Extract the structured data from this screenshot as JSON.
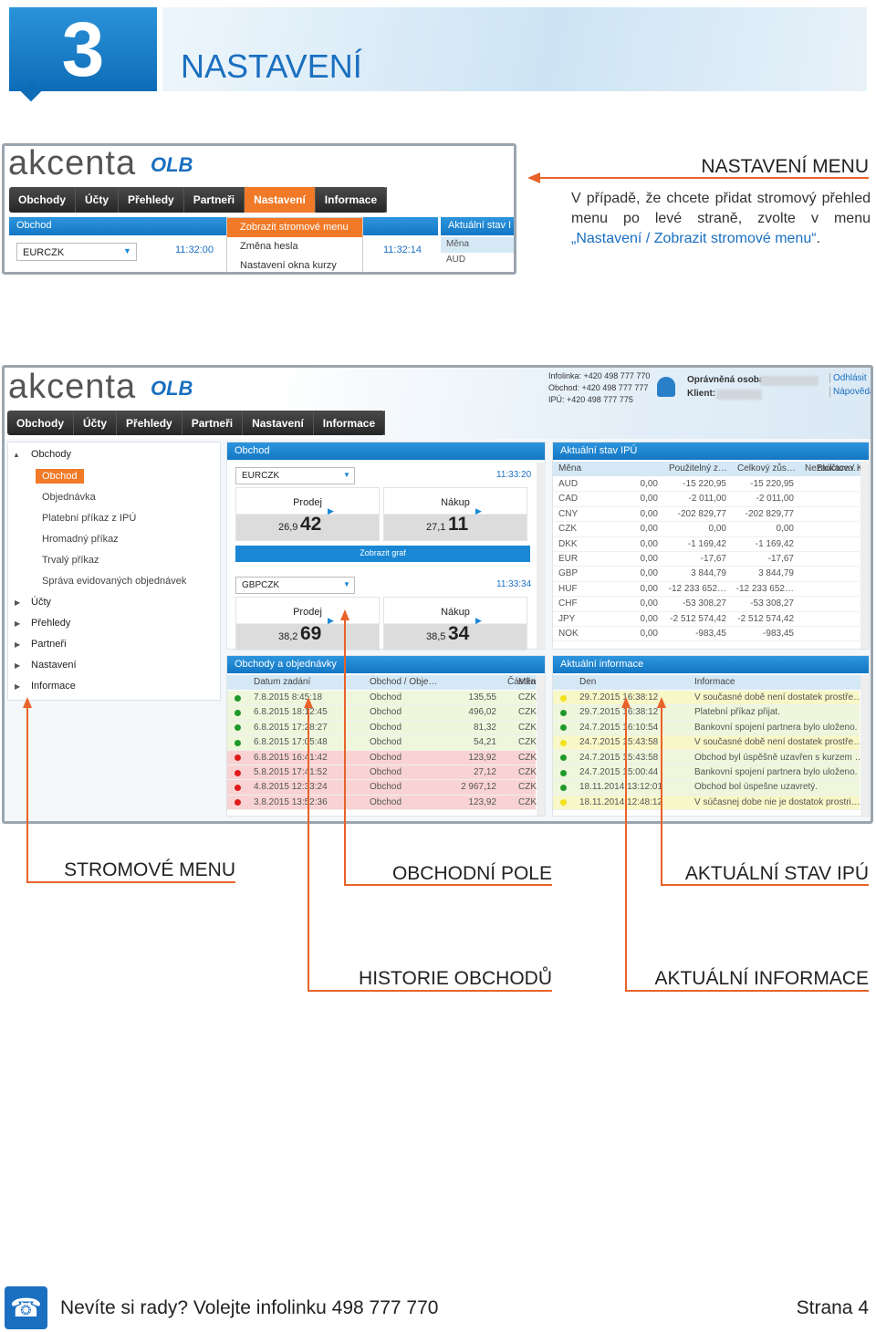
{
  "header": {
    "number": "3",
    "title": "NASTAVENÍ"
  },
  "screenshot_menu": {
    "logo": "akcenta",
    "logo_badge": "OLB",
    "menu": [
      "Obchody",
      "Účty",
      "Přehledy",
      "Partneři",
      "Nastavení",
      "Informace"
    ],
    "panel_title": "Obchod",
    "pair": "EURCZK",
    "time": "11:32:00",
    "dropdown": [
      "Zobrazit stromové menu",
      "Změna hesla",
      "Nastavení okna kurzy"
    ],
    "time_2": "11:32:14",
    "side_panel_title": "Aktuální stav I",
    "side_rows": [
      "Měna",
      "AUD"
    ]
  },
  "callout": {
    "title": "NASTAVENÍ MENU",
    "text": "V případě, že chcete přidat stromový přehled menu po levé straně, zvolte v menu",
    "link": "„Nastavení / Zobrazit stromové menu“",
    "end": "."
  },
  "screenshot_app": {
    "logo": "akcenta",
    "logo_badge": "OLB",
    "contacts": [
      "Infolinka: +420 498 777 770",
      "Obchod: +420 498 777 777",
      "IPÚ: +420 498 777 775"
    ],
    "user_labels": [
      "Oprávněná osoba:",
      "Klient:"
    ],
    "links": [
      "Odhlásit",
      "Nápověda"
    ],
    "menu": [
      "Obchody",
      "Účty",
      "Přehledy",
      "Partneři",
      "Nastavení",
      "Informace"
    ],
    "tree": {
      "root": "Obchody",
      "children": [
        "Obchod",
        "Objednávka",
        "Platební příkaz z IPÚ",
        "Hromadný příkaz",
        "Trvalý příkaz",
        "Správa evidovaných objednávek"
      ],
      "items": [
        "Účty",
        "Přehledy",
        "Partneři",
        "Nastavení",
        "Informace"
      ]
    },
    "trade": {
      "title": "Obchod",
      "pairs": [
        {
          "pair": "EURCZK",
          "time": "11:33:20",
          "sell_label": "Prodej",
          "sell_small": "26,9",
          "sell_big": "42",
          "buy_label": "Nákup",
          "buy_small": "27,1",
          "buy_big": "11"
        },
        {
          "pair": "GBPCZK",
          "time": "11:33:34",
          "sell_label": "Prodej",
          "sell_small": "38,2",
          "sell_big": "69",
          "buy_label": "Nákup",
          "buy_small": "38,5",
          "buy_big": "34"
        }
      ],
      "chart_button": "Zobrazit graf"
    },
    "balance": {
      "title": "Aktuální stav IPÚ",
      "columns": [
        "Měna",
        "Použitelný z…",
        "Celkový zůs…",
        "Nezaúčtova…",
        "Blokace / K"
      ],
      "rows": [
        [
          "AUD",
          "0,00",
          "-15 220,95",
          "-15 220,95"
        ],
        [
          "CAD",
          "0,00",
          "-2 011,00",
          "-2 011,00"
        ],
        [
          "CNY",
          "0,00",
          "-202 829,77",
          "-202 829,77"
        ],
        [
          "CZK",
          "0,00",
          "0,00",
          "0,00"
        ],
        [
          "DKK",
          "0,00",
          "-1 169,42",
          "-1 169,42"
        ],
        [
          "EUR",
          "0,00",
          "-17,67",
          "-17,67"
        ],
        [
          "GBP",
          "0,00",
          "3 844,79",
          "3 844,79"
        ],
        [
          "HUF",
          "0,00",
          "-12 233 652…",
          "-12 233 652…"
        ],
        [
          "CHF",
          "0,00",
          "-53 308,27",
          "-53 308,27"
        ],
        [
          "JPY",
          "0,00",
          "-2 512 574,42",
          "-2 512 574,42"
        ],
        [
          "NOK",
          "0,00",
          "-983,45",
          "-983,45"
        ]
      ]
    },
    "orders": {
      "title": "Obchody a objednávky",
      "columns": [
        "Datum zadání",
        "Obchod / Obje…",
        "Částka prodej",
        "Měn"
      ],
      "rows": [
        {
          "dot": "#1f9a2a",
          "background": "#eef6dc",
          "cells": [
            "7.8.2015 8:45:18",
            "Obchod",
            "135,55",
            "CZK"
          ]
        },
        {
          "dot": "#1f9a2a",
          "background": "#eef6dc",
          "cells": [
            "6.8.2015 18:12:45",
            "Obchod",
            "496,02",
            "CZK"
          ]
        },
        {
          "dot": "#1f9a2a",
          "background": "#eef6dc",
          "cells": [
            "6.8.2015 17:28:27",
            "Obchod",
            "81,32",
            "CZK"
          ]
        },
        {
          "dot": "#1f9a2a",
          "background": "#eef6dc",
          "cells": [
            "6.8.2015 17:05:48",
            "Obchod",
            "54,21",
            "CZK"
          ]
        },
        {
          "dot": "#e01b1b",
          "background": "#f9d3d3",
          "cells": [
            "6.8.2015 16:41:42",
            "Obchod",
            "123,92",
            "CZK"
          ]
        },
        {
          "dot": "#e01b1b",
          "background": "#f9d3d3",
          "cells": [
            "5.8.2015 17:41:52",
            "Obchod",
            "27,12",
            "CZK"
          ]
        },
        {
          "dot": "#e01b1b",
          "background": "#f9d3d3",
          "cells": [
            "4.8.2015 12:33:24",
            "Obchod",
            "2 967,12",
            "CZK"
          ]
        },
        {
          "dot": "#e01b1b",
          "background": "#f9d3d3",
          "cells": [
            "3.8.2015 13:52:36",
            "Obchod",
            "123,92",
            "CZK"
          ]
        }
      ]
    },
    "info": {
      "title": "Aktuální informace",
      "columns": [
        "Den",
        "Informace"
      ],
      "rows": [
        {
          "dot": "#f2e21a",
          "background": "#f7f7c8",
          "cells": [
            "29.7.2015 16:38:12",
            "V současné době není dostatek prostře…"
          ]
        },
        {
          "dot": "#1f9a2a",
          "background": "#eef6dc",
          "cells": [
            "29.7.2015 16:38:12",
            "Platební příkaz přijat."
          ]
        },
        {
          "dot": "#1f9a2a",
          "background": "#eef6dc",
          "cells": [
            "24.7.2015 16:10:54",
            "Bankovní spojení partnera bylo uloženo."
          ]
        },
        {
          "dot": "#f2e21a",
          "background": "#f7f7c8",
          "cells": [
            "24.7.2015 15:43:58",
            "V současné době není dostatek prostře…"
          ]
        },
        {
          "dot": "#1f9a2a",
          "background": "#eef6dc",
          "cells": [
            "24.7.2015 15:43:58",
            "Obchod byl úspěšně uzavřen s kurzem …"
          ]
        },
        {
          "dot": "#1f9a2a",
          "background": "#eef6dc",
          "cells": [
            "24.7.2015 15:00:44",
            "Bankovní spojení partnera bylo uloženo."
          ]
        },
        {
          "dot": "#1f9a2a",
          "background": "#eef6dc",
          "cells": [
            "18.11.2014 13:12:01",
            "Obchod bol úspešne uzavretý."
          ]
        },
        {
          "dot": "#f2e21a",
          "background": "#f7f7c8",
          "cells": [
            "18.11.2014 12:48:12",
            "V súčasnej dobe nie je dostatok prostri…"
          ]
        }
      ]
    }
  },
  "labels": [
    "STROMOVÉ MENU",
    "OBCHODNÍ POLE",
    "AKTUÁLNÍ STAV IPÚ",
    "HISTORIE OBCHODŮ",
    "AKTUÁLNÍ INFORMACE"
  ],
  "footer": {
    "text": "Nevíte si rady? Volejte infolinku 498 777 770",
    "page": "Strana 4"
  }
}
